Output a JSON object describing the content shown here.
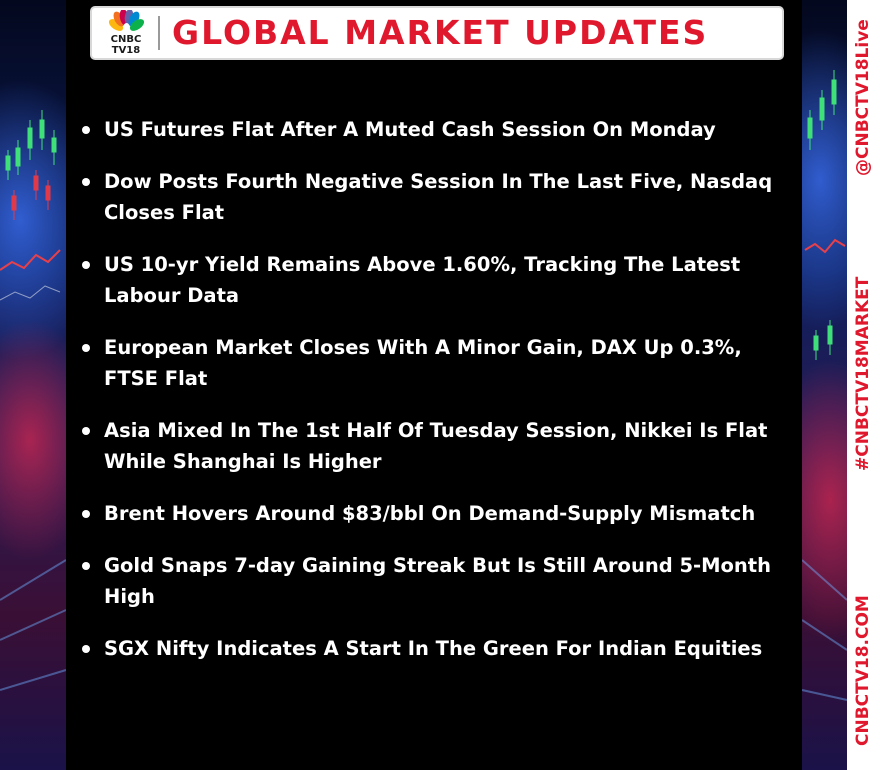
{
  "header": {
    "logo": {
      "line1": "CNBC",
      "line2": "TV18"
    },
    "title": "GLOBAL MARKET UPDATES"
  },
  "bullets": [
    "US Futures Flat After A Muted Cash Session On Monday",
    "Dow Posts Fourth Negative Session In The Last Five, Nasdaq Closes Flat",
    "US 10-yr Yield Remains Above 1.60%, Tracking The Latest Labour Data",
    "European Market Closes With A Minor Gain, DAX Up 0.3%, FTSE Flat",
    "Asia Mixed In The 1st Half Of Tuesday Session, Nikkei Is Flat While Shanghai Is Higher",
    "Brent Hovers Around $83/bbl On Demand-Supply Mismatch",
    "Gold Snaps 7-day Gaining Streak But Is Still Around 5-Month High",
    "SGX Nifty Indicates A Start In The Green For Indian Equities"
  ],
  "side": {
    "twitter": "@CNBCTV18Live",
    "hashtag": "#CNBCTV18MARKET",
    "website": "CNBCTV18.COM"
  },
  "colors": {
    "title_red": "#e0182d",
    "panel_bg": "#000000",
    "text_white": "#ffffff",
    "bg_blue": "#0a1238"
  },
  "icons": {
    "logo": "cnbc-peacock-logo",
    "bullet": "bullet-dot"
  }
}
